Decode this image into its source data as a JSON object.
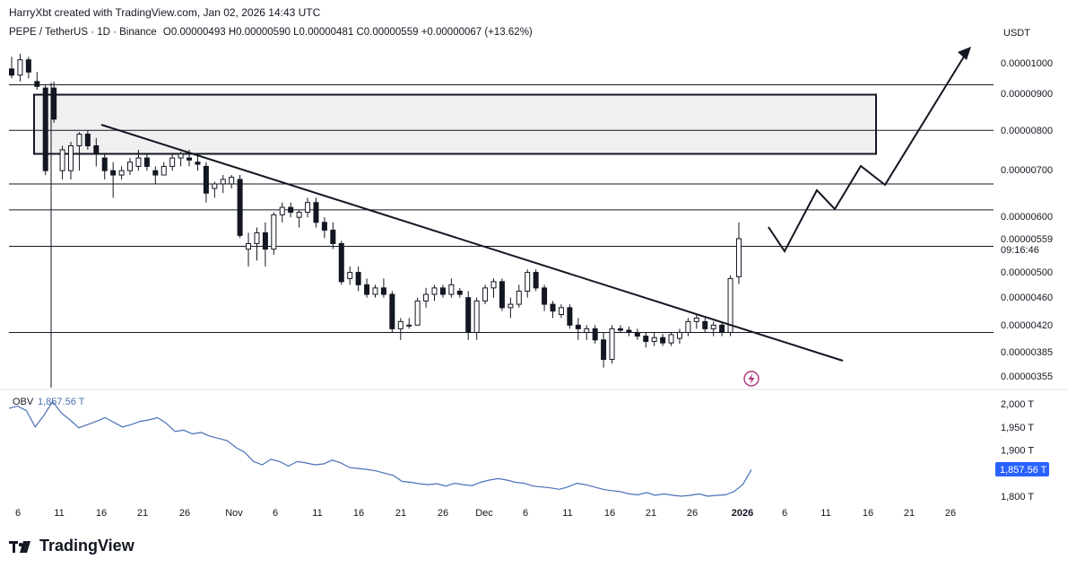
{
  "header": {
    "author_line": "HarryXbt created with TradingView.com, Jan 02, 2026 14:43 UTC"
  },
  "symbol": {
    "pair": "PEPE / TetherUS · 1D · Binance",
    "open": "O0.00000493",
    "high": "H0.00000590",
    "low": "L0.00000481",
    "close": "C0.00000559",
    "change": "+0.00000067 (+13.62%)"
  },
  "price_axis": {
    "currency": "USDT",
    "labels": [
      "0.00001000",
      "0.00000900",
      "0.00000800",
      "0.00000700",
      "0.00000600",
      "0.00000559",
      "09:16:46",
      "0.00000500",
      "0.00000460",
      "0.00000420",
      "0.00000385",
      "0.00000355"
    ]
  },
  "obv": {
    "label": "OBV",
    "value": "1,857.56 T",
    "axis_labels": [
      "2,000 T",
      "1,950 T",
      "1,900 T",
      "1,800 T"
    ],
    "badge": "1,857.56 T"
  },
  "time_axis": [
    "6",
    "11",
    "16",
    "21",
    "26",
    "Nov",
    "6",
    "11",
    "16",
    "21",
    "26",
    "Dec",
    "6",
    "11",
    "16",
    "21",
    "26",
    "2026",
    "6",
    "11",
    "16",
    "21",
    "26"
  ],
  "brand": {
    "name": "TradingView"
  },
  "colors": {
    "candle": "#131722",
    "obv_line": "#4a6fb5",
    "badge": "#2962ff",
    "zone_fill": "#f0f0f0",
    "flash_icon": "#b0307a"
  },
  "chart_data": {
    "type": "candlestick",
    "symbol": "PEPE / TetherUS",
    "interval": "1D",
    "y_scale": "log",
    "candles": [
      {
        "o": 9.8e-06,
        "h": 1.02e-05,
        "l": 9.5e-06,
        "c": 9.6e-06
      },
      {
        "o": 9.6e-06,
        "h": 1.03e-05,
        "l": 9.4e-06,
        "c": 1.01e-05
      },
      {
        "o": 1.01e-05,
        "h": 1.02e-05,
        "l": 9.5e-06,
        "c": 9.7e-06
      },
      {
        "o": 9.4e-06,
        "h": 9.7e-06,
        "l": 9.15e-06,
        "c": 9.25e-06
      },
      {
        "o": 9.2e-06,
        "h": 9.3e-06,
        "l": 6.9e-06,
        "c": 7e-06
      },
      {
        "o": 9.2e-06,
        "h": 9.4e-06,
        "l": 8.2e-06,
        "c": 8.3e-06
      },
      {
        "o": 7e-06,
        "h": 7.6e-06,
        "l": 6.8e-06,
        "c": 7.5e-06
      },
      {
        "o": 7e-06,
        "h": 7.7e-06,
        "l": 6.8e-06,
        "c": 7.6e-06
      },
      {
        "o": 7.6e-06,
        "h": 7.95e-06,
        "l": 7e-06,
        "c": 7.9e-06
      },
      {
        "o": 7.9e-06,
        "h": 8e-06,
        "l": 7.5e-06,
        "c": 7.6e-06
      },
      {
        "o": 7.6e-06,
        "h": 7.8e-06,
        "l": 7.1e-06,
        "c": 7.4e-06
      },
      {
        "o": 7.3e-06,
        "h": 7.4e-06,
        "l": 6.8e-06,
        "c": 7e-06
      },
      {
        "o": 7e-06,
        "h": 7.2e-06,
        "l": 6.4e-06,
        "c": 6.9e-06
      },
      {
        "o": 6.9e-06,
        "h": 7.1e-06,
        "l": 6.8e-06,
        "c": 7e-06
      },
      {
        "o": 7e-06,
        "h": 7.3e-06,
        "l": 6.9e-06,
        "c": 7.2e-06
      },
      {
        "o": 7.1e-06,
        "h": 7.5e-06,
        "l": 7e-06,
        "c": 7.3e-06
      },
      {
        "o": 7.3e-06,
        "h": 7.4e-06,
        "l": 7e-06,
        "c": 7.1e-06
      },
      {
        "o": 7e-06,
        "h": 7.1e-06,
        "l": 6.7e-06,
        "c": 6.9e-06
      },
      {
        "o": 6.9e-06,
        "h": 7.2e-06,
        "l": 6.9e-06,
        "c": 7.1e-06
      },
      {
        "o": 7.1e-06,
        "h": 7.4e-06,
        "l": 7e-06,
        "c": 7.3e-06
      },
      {
        "o": 7.3e-06,
        "h": 7.45e-06,
        "l": 7.1e-06,
        "c": 7.4e-06
      },
      {
        "o": 7.3e-06,
        "h": 7.5e-06,
        "l": 7.1e-06,
        "c": 7.25e-06
      },
      {
        "o": 7.2e-06,
        "h": 7.35e-06,
        "l": 7e-06,
        "c": 7.15e-06
      },
      {
        "o": 7.1e-06,
        "h": 7.2e-06,
        "l": 6.3e-06,
        "c": 6.5e-06
      },
      {
        "o": 6.6e-06,
        "h": 6.75e-06,
        "l": 6.4e-06,
        "c": 6.7e-06
      },
      {
        "o": 6.7e-06,
        "h": 6.9e-06,
        "l": 6.5e-06,
        "c": 6.8e-06
      },
      {
        "o": 6.7e-06,
        "h": 6.9e-06,
        "l": 6.6e-06,
        "c": 6.85e-06
      },
      {
        "o": 6.8e-06,
        "h": 6.9e-06,
        "l": 5.6e-06,
        "c": 5.65e-06
      },
      {
        "o": 5.4e-06,
        "h": 5.7e-06,
        "l": 5.1e-06,
        "c": 5.5e-06
      },
      {
        "o": 5.5e-06,
        "h": 5.8e-06,
        "l": 5.2e-06,
        "c": 5.7e-06
      },
      {
        "o": 5.7e-06,
        "h": 5.9e-06,
        "l": 5.1e-06,
        "c": 5.4e-06
      },
      {
        "o": 5.4e-06,
        "h": 6.1e-06,
        "l": 5.3e-06,
        "c": 6.05e-06
      },
      {
        "o": 6.05e-06,
        "h": 6.3e-06,
        "l": 5.9e-06,
        "c": 6.2e-06
      },
      {
        "o": 6.2e-06,
        "h": 6.3e-06,
        "l": 6e-06,
        "c": 6.1e-06
      },
      {
        "o": 6e-06,
        "h": 6.15e-06,
        "l": 5.8e-06,
        "c": 6.1e-06
      },
      {
        "o": 6.1e-06,
        "h": 6.4e-06,
        "l": 6e-06,
        "c": 6.3e-06
      },
      {
        "o": 6.3e-06,
        "h": 6.4e-06,
        "l": 5.8e-06,
        "c": 5.9e-06
      },
      {
        "o": 5.9e-06,
        "h": 6e-06,
        "l": 5.6e-06,
        "c": 5.75e-06
      },
      {
        "o": 5.75e-06,
        "h": 5.9e-06,
        "l": 5.4e-06,
        "c": 5.5e-06
      },
      {
        "o": 5.5e-06,
        "h": 5.55e-06,
        "l": 4.8e-06,
        "c": 4.85e-06
      },
      {
        "o": 4.9e-06,
        "h": 5.1e-06,
        "l": 4.8e-06,
        "c": 5e-06
      },
      {
        "o": 5e-06,
        "h": 5.1e-06,
        "l": 4.7e-06,
        "c": 4.8e-06
      },
      {
        "o": 4.8e-06,
        "h": 4.9e-06,
        "l": 4.6e-06,
        "c": 4.65e-06
      },
      {
        "o": 4.65e-06,
        "h": 4.8e-06,
        "l": 4.6e-06,
        "c": 4.75e-06
      },
      {
        "o": 4.75e-06,
        "h": 4.9e-06,
        "l": 4.6e-06,
        "c": 4.65e-06
      },
      {
        "o": 4.65e-06,
        "h": 4.7e-06,
        "l": 4.1e-06,
        "c": 4.15e-06
      },
      {
        "o": 4.15e-06,
        "h": 4.3e-06,
        "l": 4e-06,
        "c": 4.25e-06
      },
      {
        "o": 4.2e-06,
        "h": 4.3e-06,
        "l": 4.15e-06,
        "c": 4.2e-06
      },
      {
        "o": 4.2e-06,
        "h": 4.6e-06,
        "l": 4.2e-06,
        "c": 4.55e-06
      },
      {
        "o": 4.55e-06,
        "h": 4.75e-06,
        "l": 4.45e-06,
        "c": 4.65e-06
      },
      {
        "o": 4.65e-06,
        "h": 4.8e-06,
        "l": 4.55e-06,
        "c": 4.75e-06
      },
      {
        "o": 4.75e-06,
        "h": 4.8e-06,
        "l": 4.6e-06,
        "c": 4.65e-06
      },
      {
        "o": 4.65e-06,
        "h": 4.9e-06,
        "l": 4.6e-06,
        "c": 4.8e-06
      },
      {
        "o": 4.7e-06,
        "h": 4.75e-06,
        "l": 4.6e-06,
        "c": 4.65e-06
      },
      {
        "o": 4.6e-06,
        "h": 4.7e-06,
        "l": 4e-06,
        "c": 4.1e-06
      },
      {
        "o": 4.1e-06,
        "h": 4.6e-06,
        "l": 4e-06,
        "c": 4.55e-06
      },
      {
        "o": 4.55e-06,
        "h": 4.8e-06,
        "l": 4.5e-06,
        "c": 4.75e-06
      },
      {
        "o": 4.75e-06,
        "h": 4.9e-06,
        "l": 4.6e-06,
        "c": 4.85e-06
      },
      {
        "o": 4.85e-06,
        "h": 4.9e-06,
        "l": 4.4e-06,
        "c": 4.45e-06
      },
      {
        "o": 4.45e-06,
        "h": 4.6e-06,
        "l": 4.3e-06,
        "c": 4.5e-06
      },
      {
        "o": 4.5e-06,
        "h": 4.8e-06,
        "l": 4.45e-06,
        "c": 4.7e-06
      },
      {
        "o": 4.7e-06,
        "h": 5.05e-06,
        "l": 4.6e-06,
        "c": 5e-06
      },
      {
        "o": 5e-06,
        "h": 5.05e-06,
        "l": 4.7e-06,
        "c": 4.75e-06
      },
      {
        "o": 4.75e-06,
        "h": 4.8e-06,
        "l": 4.4e-06,
        "c": 4.5e-06
      },
      {
        "o": 4.5e-06,
        "h": 4.55e-06,
        "l": 4.3e-06,
        "c": 4.4e-06
      },
      {
        "o": 4.35e-06,
        "h": 4.5e-06,
        "l": 4.3e-06,
        "c": 4.45e-06
      },
      {
        "o": 4.45e-06,
        "h": 4.5e-06,
        "l": 4.15e-06,
        "c": 4.2e-06
      },
      {
        "o": 4.2e-06,
        "h": 4.3e-06,
        "l": 4e-06,
        "c": 4.15e-06
      },
      {
        "o": 4.1e-06,
        "h": 4.2e-06,
        "l": 4e-06,
        "c": 4.15e-06
      },
      {
        "o": 4.15e-06,
        "h": 4.2e-06,
        "l": 3.95e-06,
        "c": 4e-06
      },
      {
        "o": 4e-06,
        "h": 4.1e-06,
        "l": 3.65e-06,
        "c": 3.75e-06
      },
      {
        "o": 3.75e-06,
        "h": 4.2e-06,
        "l": 3.7e-06,
        "c": 4.15e-06
      },
      {
        "o": 4.15e-06,
        "h": 4.2e-06,
        "l": 4.1e-06,
        "c": 4.13e-06
      },
      {
        "o": 4.13e-06,
        "h": 4.18e-06,
        "l": 4.05e-06,
        "c": 4.1e-06
      },
      {
        "o": 4.1e-06,
        "h": 4.15e-06,
        "l": 4e-06,
        "c": 4.05e-06
      },
      {
        "o": 4.05e-06,
        "h": 4.1e-06,
        "l": 3.9e-06,
        "c": 3.98e-06
      },
      {
        "o": 3.98e-06,
        "h": 4.1e-06,
        "l": 3.92e-06,
        "c": 4.03e-06
      },
      {
        "o": 4.03e-06,
        "h": 4.08e-06,
        "l": 3.92e-06,
        "c": 3.96e-06
      },
      {
        "o": 3.96e-06,
        "h": 4.1e-06,
        "l": 3.92e-06,
        "c": 4.07e-06
      },
      {
        "o": 4.02e-06,
        "h": 4.15e-06,
        "l": 3.95e-06,
        "c": 4.1e-06
      },
      {
        "o": 4.1e-06,
        "h": 4.3e-06,
        "l": 4.05e-06,
        "c": 4.25e-06
      },
      {
        "o": 4.25e-06,
        "h": 4.35e-06,
        "l": 4.15e-06,
        "c": 4.3e-06
      },
      {
        "o": 4.25e-06,
        "h": 4.3e-06,
        "l": 4.1e-06,
        "c": 4.15e-06
      },
      {
        "o": 4.15e-06,
        "h": 4.25e-06,
        "l": 4.05e-06,
        "c": 4.2e-06
      },
      {
        "o": 4.2e-06,
        "h": 4.25e-06,
        "l": 4.05e-06,
        "c": 4.1e-06
      },
      {
        "o": 4.1e-06,
        "h": 4.95e-06,
        "l": 4.05e-06,
        "c": 4.9e-06
      },
      {
        "o": 4.93e-06,
        "h": 5.9e-06,
        "l": 4.81e-06,
        "c": 5.59e-06
      }
    ],
    "levels": [
      9.3e-06,
      8e-06,
      6.7e-06,
      6.15e-06,
      5.45e-06,
      4.1e-06
    ],
    "zone": {
      "top": 9e-06,
      "bottom": 7.4e-06
    },
    "obv_series": [
      1990,
      1995,
      1985,
      1950,
      1975,
      2005,
      1980,
      1965,
      1948,
      1955,
      1962,
      1970,
      1960,
      1950,
      1955,
      1962,
      1965,
      1970,
      1958,
      1940,
      1943,
      1935,
      1938,
      1930,
      1925,
      1920,
      1905,
      1895,
      1875,
      1868,
      1880,
      1875,
      1865,
      1875,
      1872,
      1868,
      1870,
      1878,
      1872,
      1862,
      1860,
      1858,
      1855,
      1850,
      1845,
      1832,
      1830,
      1827,
      1825,
      1827,
      1822,
      1828,
      1825,
      1823,
      1830,
      1835,
      1838,
      1835,
      1830,
      1828,
      1822,
      1820,
      1818,
      1815,
      1820,
      1828,
      1825,
      1820,
      1815,
      1812,
      1810,
      1805,
      1803,
      1808,
      1802,
      1805,
      1802,
      1800,
      1802,
      1805,
      1800,
      1802,
      1803,
      1810,
      1825,
      1857.56
    ]
  }
}
